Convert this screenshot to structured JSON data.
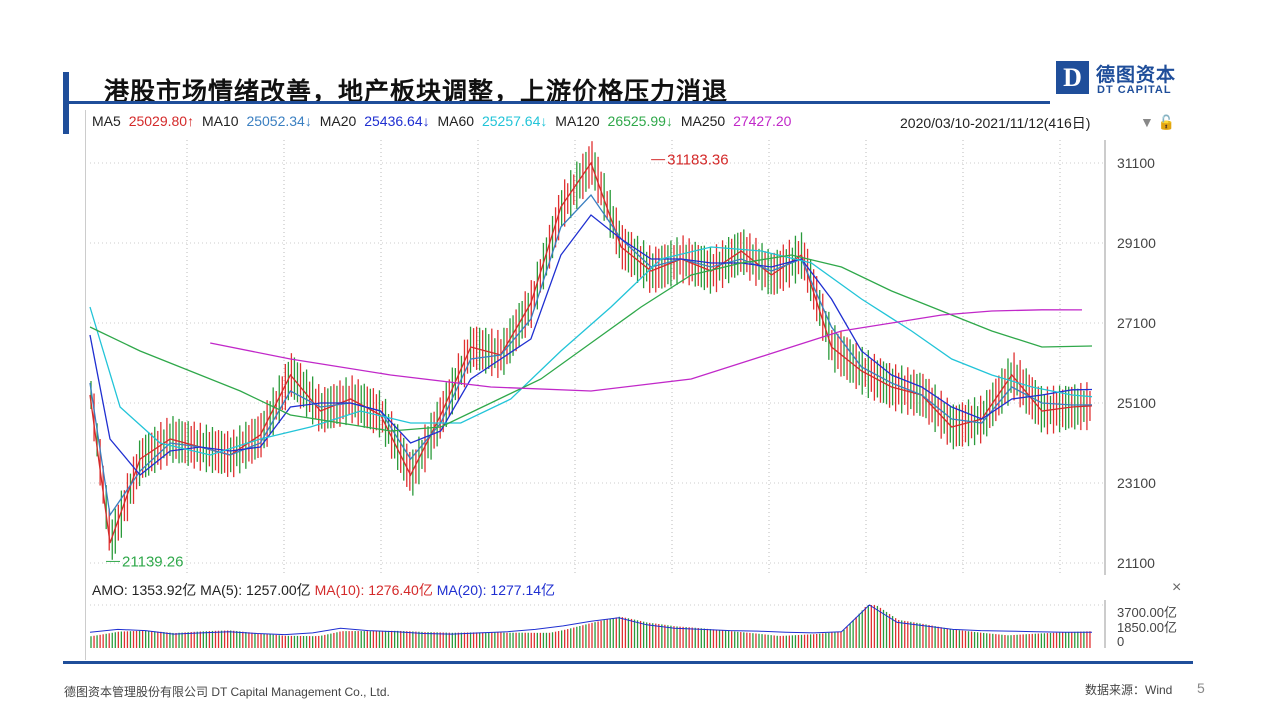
{
  "header": {
    "title": "港股市场情绪改善，地产板块调整，上游价格压力消退",
    "logo_mark": "D",
    "logo_cn": "德图资本",
    "logo_en": "DT CAPITAL"
  },
  "ma_legend": [
    {
      "label": "MA5",
      "value": "25029.80↑",
      "color": "#d42a2a"
    },
    {
      "label": "MA10",
      "value": "25052.34↓",
      "color": "#3a7fc1"
    },
    {
      "label": "MA20",
      "value": "25436.64↓",
      "color": "#1f2fd1"
    },
    {
      "label": "MA60",
      "value": "25257.64↓",
      "color": "#22c4d8"
    },
    {
      "label": "MA120",
      "value": "26525.99↓",
      "color": "#2fa84a"
    },
    {
      "label": "MA250",
      "value": "27427.20",
      "color": "#c128c9"
    }
  ],
  "range_text": "2020/03/10-2021/11/12(416日)",
  "range_icons": "▼ 🔓",
  "amo_legend": [
    {
      "label": "AMO: 1353.92亿",
      "color": "#222"
    },
    {
      "label": "MA(5): 1257.00亿",
      "color": "#222"
    },
    {
      "label": "MA(10): 1276.40亿",
      "color": "#d42a2a"
    },
    {
      "label": "MA(20): 1277.14亿",
      "color": "#1f2fd1"
    }
  ],
  "amo_close": "×",
  "footer": {
    "company": "德图资本管理股份有限公司  DT Capital Management Co., Ltd.",
    "source": "数据来源：Wind",
    "page": "5"
  },
  "chart_data": {
    "type": "line",
    "title": "",
    "x_range": [
      "2020/03/10",
      "2021/11/12"
    ],
    "ylim": [
      21100,
      31100
    ],
    "y_ticks": [
      "31100",
      "29100",
      "27100",
      "25100",
      "23100",
      "21100"
    ],
    "annotations": [
      {
        "text": "31183.36",
        "x_frac": 0.56,
        "y": 31183.36,
        "color": "#d42a2a"
      },
      {
        "text": "21139.26",
        "x_frac": 0.016,
        "y": 21139.26,
        "color": "#2fa84a"
      }
    ],
    "series": [
      {
        "name": "MA5",
        "color": "#d42a2a",
        "x_frac": [
          0.0,
          0.02,
          0.05,
          0.08,
          0.11,
          0.14,
          0.17,
          0.2,
          0.23,
          0.26,
          0.29,
          0.32,
          0.35,
          0.38,
          0.41,
          0.44,
          0.47,
          0.5,
          0.53,
          0.56,
          0.59,
          0.62,
          0.65,
          0.68,
          0.71,
          0.74,
          0.77,
          0.8,
          0.83,
          0.86,
          0.89,
          0.92,
          0.95,
          0.98,
          1.0
        ],
        "values": [
          25300,
          21600,
          23700,
          24200,
          24000,
          23800,
          24300,
          25800,
          24900,
          25200,
          24800,
          23300,
          24800,
          26500,
          26300,
          27600,
          30000,
          31100,
          29000,
          28400,
          28700,
          28400,
          28900,
          28300,
          28800,
          26500,
          25900,
          25500,
          25300,
          24500,
          24700,
          25800,
          24900,
          25000,
          25030
        ]
      },
      {
        "name": "MA10",
        "color": "#3a7fc1",
        "x_frac": [
          0.0,
          0.02,
          0.05,
          0.08,
          0.11,
          0.14,
          0.17,
          0.2,
          0.23,
          0.26,
          0.29,
          0.32,
          0.35,
          0.38,
          0.41,
          0.44,
          0.47,
          0.5,
          0.53,
          0.56,
          0.59,
          0.62,
          0.65,
          0.68,
          0.71,
          0.74,
          0.77,
          0.8,
          0.83,
          0.86,
          0.89,
          0.92,
          0.95,
          0.98,
          1.0
        ],
        "values": [
          25600,
          22300,
          23400,
          24100,
          24000,
          23800,
          24100,
          25400,
          25000,
          25100,
          24900,
          23700,
          24600,
          26200,
          26300,
          27200,
          29500,
          30300,
          29200,
          28500,
          28700,
          28500,
          28700,
          28400,
          28700,
          27000,
          26000,
          25600,
          25300,
          24700,
          24600,
          25500,
          25100,
          25050,
          25052
        ]
      },
      {
        "name": "MA20",
        "color": "#1f2fd1",
        "x_frac": [
          0.0,
          0.02,
          0.05,
          0.08,
          0.11,
          0.14,
          0.17,
          0.2,
          0.23,
          0.26,
          0.29,
          0.32,
          0.35,
          0.38,
          0.41,
          0.44,
          0.47,
          0.5,
          0.53,
          0.56,
          0.59,
          0.62,
          0.65,
          0.68,
          0.71,
          0.74,
          0.77,
          0.8,
          0.83,
          0.86,
          0.89,
          0.92,
          0.95,
          0.98,
          1.0
        ],
        "values": [
          26800,
          24200,
          23300,
          23900,
          24000,
          23900,
          24000,
          25000,
          25100,
          25100,
          24900,
          24100,
          24400,
          25700,
          26200,
          26700,
          28800,
          29800,
          29200,
          28700,
          28700,
          28600,
          28600,
          28500,
          28700,
          27700,
          26400,
          25800,
          25500,
          25000,
          24700,
          25200,
          25300,
          25430,
          25437
        ]
      },
      {
        "name": "MA60",
        "color": "#22c4d8",
        "x_frac": [
          0.0,
          0.03,
          0.07,
          0.12,
          0.17,
          0.22,
          0.27,
          0.32,
          0.37,
          0.42,
          0.47,
          0.52,
          0.57,
          0.62,
          0.67,
          0.72,
          0.77,
          0.82,
          0.86,
          0.9,
          0.94,
          0.98,
          1.0
        ],
        "values": [
          27500,
          25000,
          24100,
          23800,
          24200,
          24500,
          24900,
          24600,
          24600,
          25200,
          26400,
          27500,
          28700,
          29000,
          28900,
          28600,
          27700,
          26900,
          26200,
          25800,
          25500,
          25300,
          25258
        ]
      },
      {
        "name": "MA120",
        "color": "#2fa84a",
        "x_frac": [
          0.0,
          0.05,
          0.1,
          0.15,
          0.2,
          0.25,
          0.3,
          0.35,
          0.4,
          0.45,
          0.5,
          0.55,
          0.6,
          0.65,
          0.7,
          0.75,
          0.8,
          0.85,
          0.9,
          0.95,
          1.0
        ],
        "values": [
          27000,
          26400,
          25900,
          25400,
          24800,
          24600,
          24400,
          24500,
          25100,
          25700,
          26600,
          27500,
          28300,
          28600,
          28800,
          28500,
          27900,
          27400,
          26900,
          26500,
          26526
        ]
      },
      {
        "name": "MA250",
        "color": "#c128c9",
        "x_frac": [
          0.12,
          0.2,
          0.3,
          0.4,
          0.5,
          0.6,
          0.7,
          0.75,
          0.8,
          0.85,
          0.9,
          0.95,
          0.99
        ],
        "values": [
          26600,
          26200,
          25800,
          25500,
          25400,
          25700,
          26500,
          26900,
          27100,
          27300,
          27400,
          27430,
          27427
        ]
      }
    ],
    "volume": {
      "yticks": [
        "3700.00亿",
        "1850.00亿",
        "0"
      ],
      "values": [
        1350,
        1600,
        1500,
        1200,
        1300,
        1400,
        1250,
        1150,
        1300,
        1700,
        1500,
        1400,
        1250,
        1200,
        1300,
        1400,
        1600,
        1900,
        2300,
        2600,
        2000,
        1700,
        1600,
        1500,
        1450,
        1350,
        1300,
        1400,
        3700,
        2200,
        1900,
        1600,
        1500,
        1450,
        1400,
        1350,
        1354
      ]
    }
  }
}
